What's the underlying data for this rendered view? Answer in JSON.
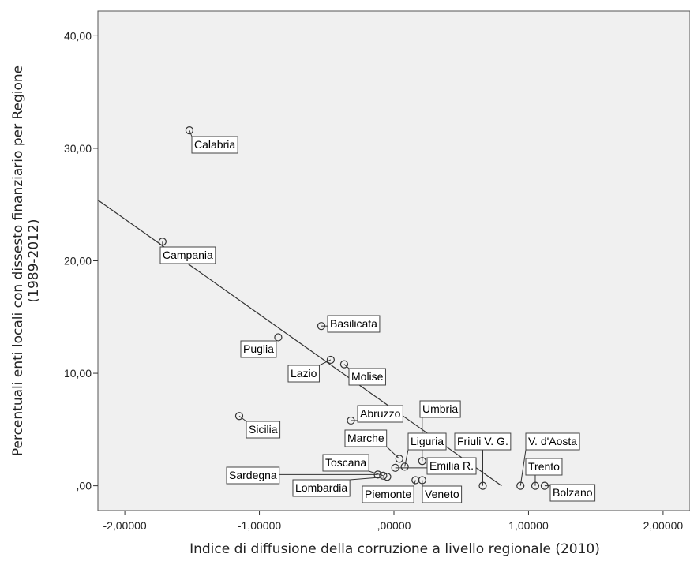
{
  "chart_data": {
    "type": "scatter",
    "title": "",
    "xlabel": "Indice di diffusione della corruzione a livello regionale (2010)",
    "ylabel_line1": "Percentuali enti locali con dissesto finanziario per Regione",
    "ylabel_line2": "(1989-2012)",
    "xlim": [
      -2.2,
      2.2
    ],
    "ylim": [
      -2.2,
      42.2
    ],
    "x_ticks": [
      {
        "value": -2,
        "label": "-2,00000"
      },
      {
        "value": -1,
        "label": "-1,00000"
      },
      {
        "value": 0,
        "label": ",00000"
      },
      {
        "value": 1,
        "label": "1,00000"
      },
      {
        "value": 2,
        "label": "2,00000"
      }
    ],
    "y_ticks": [
      {
        "value": 0,
        "label": ",00"
      },
      {
        "value": 10,
        "label": "10,00"
      },
      {
        "value": 20,
        "label": "20,00"
      },
      {
        "value": 30,
        "label": "30,00"
      },
      {
        "value": 40,
        "label": "40,00"
      }
    ],
    "grid": false,
    "background_color": "#f0f0f0",
    "marker_color": "#333333",
    "line_color": "#333333",
    "fit_line": {
      "x": [
        -2.2,
        0.8
      ],
      "y": [
        25.4,
        0.0
      ]
    },
    "points": [
      {
        "name": "Calabria",
        "x": -1.52,
        "y": 31.6
      },
      {
        "name": "Campania",
        "x": -1.72,
        "y": 21.7
      },
      {
        "name": "Puglia",
        "x": -0.86,
        "y": 13.2
      },
      {
        "name": "Basilicata",
        "x": -0.54,
        "y": 14.2
      },
      {
        "name": "Lazio",
        "x": -0.47,
        "y": 11.2
      },
      {
        "name": "Molise",
        "x": -0.37,
        "y": 10.8
      },
      {
        "name": "Sicilia",
        "x": -1.15,
        "y": 6.2
      },
      {
        "name": "Abruzzo",
        "x": -0.32,
        "y": 5.8
      },
      {
        "name": "Umbria",
        "x": 0.21,
        "y": 2.2
      },
      {
        "name": "Marche",
        "x": 0.04,
        "y": 2.4
      },
      {
        "name": "Liguria",
        "x": 0.08,
        "y": 1.7
      },
      {
        "name": "Friuli V. G.",
        "x": 0.66,
        "y": 0.0
      },
      {
        "name": "V. d'Aosta",
        "x": 0.94,
        "y": 0.0
      },
      {
        "name": "Toscana",
        "x": -0.08,
        "y": 0.9
      },
      {
        "name": "Emilia R.",
        "x": 0.01,
        "y": 1.6
      },
      {
        "name": "Trento",
        "x": 1.05,
        "y": 0.0
      },
      {
        "name": "Sardegna",
        "x": -0.12,
        "y": 1.0
      },
      {
        "name": "Lombardia",
        "x": -0.05,
        "y": 0.8
      },
      {
        "name": "Piemonte",
        "x": 0.16,
        "y": 0.5
      },
      {
        "name": "Veneto",
        "x": 0.21,
        "y": 0.5
      },
      {
        "name": "Bolzano",
        "x": 1.12,
        "y": 0.0
      }
    ]
  }
}
